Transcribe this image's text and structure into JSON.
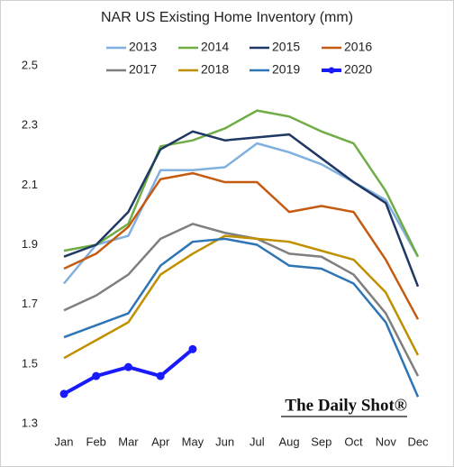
{
  "chart_data": {
    "type": "line",
    "title": "NAR US Existing Home Inventory (mm)",
    "categories": [
      "Jan",
      "Feb",
      "Mar",
      "Apr",
      "May",
      "Jun",
      "Jul",
      "Aug",
      "Sep",
      "Oct",
      "Nov",
      "Dec"
    ],
    "series": [
      {
        "name": "2013",
        "color": "#7fb0e0",
        "values": [
          1.77,
          1.9,
          1.93,
          2.15,
          2.15,
          2.16,
          2.24,
          2.21,
          2.17,
          2.11,
          2.05,
          1.86
        ]
      },
      {
        "name": "2014",
        "color": "#70ad47",
        "values": [
          1.88,
          1.9,
          1.97,
          2.23,
          2.25,
          2.29,
          2.35,
          2.33,
          2.28,
          2.24,
          2.08,
          1.86
        ]
      },
      {
        "name": "2015",
        "color": "#1f3864",
        "values": [
          1.86,
          1.9,
          2.01,
          2.22,
          2.28,
          2.25,
          2.26,
          2.27,
          2.19,
          2.11,
          2.04,
          1.76
        ]
      },
      {
        "name": "2016",
        "color": "#c55a11",
        "values": [
          1.82,
          1.87,
          1.96,
          2.12,
          2.14,
          2.11,
          2.11,
          2.01,
          2.03,
          2.01,
          1.85,
          1.65
        ]
      },
      {
        "name": "2017",
        "color": "#7f7f7f",
        "values": [
          1.68,
          1.73,
          1.8,
          1.92,
          1.97,
          1.94,
          1.92,
          1.87,
          1.86,
          1.8,
          1.67,
          1.46
        ]
      },
      {
        "name": "2018",
        "color": "#bf9000",
        "values": [
          1.52,
          1.58,
          1.64,
          1.8,
          1.87,
          1.93,
          1.92,
          1.91,
          1.88,
          1.85,
          1.74,
          1.53
        ]
      },
      {
        "name": "2019",
        "color": "#2e75b6",
        "values": [
          1.59,
          1.63,
          1.67,
          1.83,
          1.91,
          1.92,
          1.9,
          1.83,
          1.82,
          1.77,
          1.64,
          1.39
        ]
      },
      {
        "name": "2020",
        "color": "#1a1aff",
        "values": [
          1.4,
          1.46,
          1.49,
          1.46,
          1.55,
          null,
          null,
          null,
          null,
          null,
          null,
          null
        ],
        "markers": true
      }
    ],
    "ylim": [
      1.3,
      2.5
    ],
    "yticks": [
      1.3,
      1.5,
      1.7,
      1.9,
      2.1,
      2.3,
      2.5
    ],
    "grid": false,
    "annotation": "The Daily Shot®"
  }
}
